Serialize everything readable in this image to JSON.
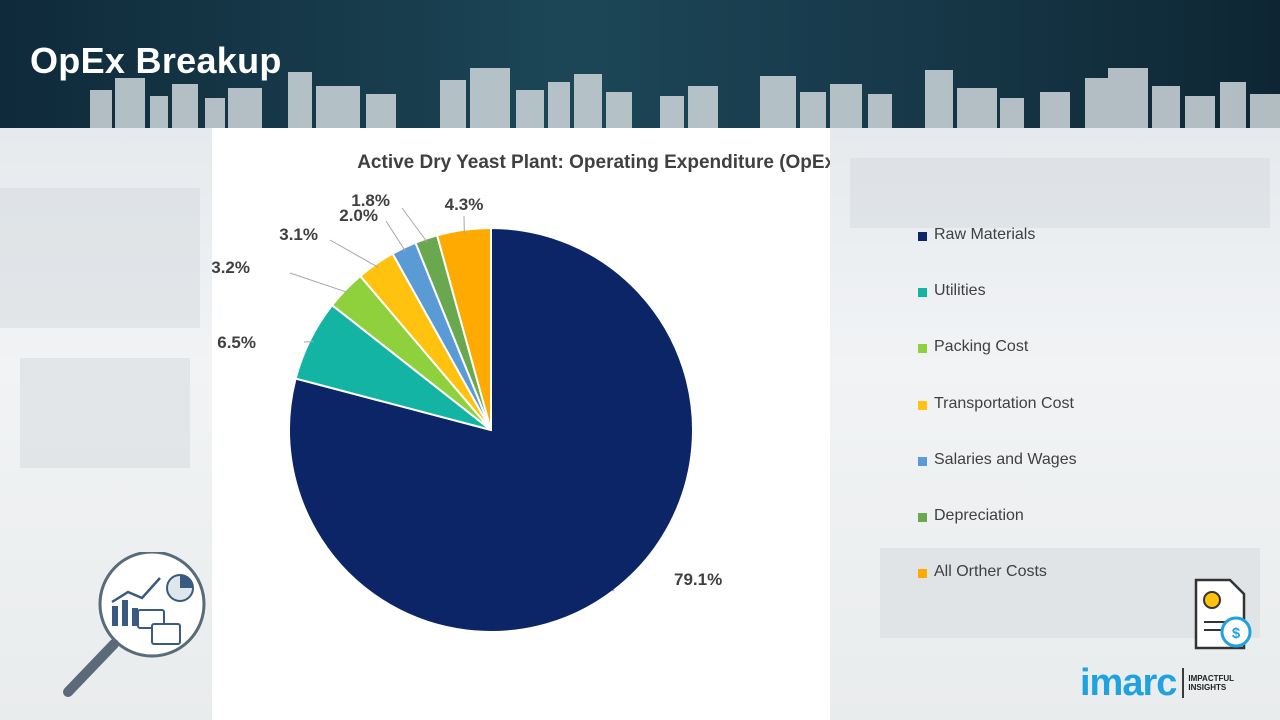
{
  "page": {
    "title": "OpEx Breakup"
  },
  "chart_data": {
    "type": "pie",
    "title": "Active Dry Yeast Plant: Operating Expenditure (OpEx) Breakup",
    "start_angle_deg": 0,
    "direction": "clockwise",
    "slices": [
      {
        "label": "Raw Materials",
        "value": 79.1,
        "display": "79.1%",
        "color": "#0c2566"
      },
      {
        "label": "Utilities",
        "value": 6.5,
        "display": "6.5%",
        "color": "#14b4a4"
      },
      {
        "label": "Packing Cost",
        "value": 3.2,
        "display": "3.2%",
        "color": "#8fd13c"
      },
      {
        "label": "Transportation Cost",
        "value": 3.1,
        "display": "3.1%",
        "color": "#ffc20e"
      },
      {
        "label": "Salaries and Wages",
        "value": 2.0,
        "display": "2.0%",
        "color": "#5b9bd5"
      },
      {
        "label": "Depreciation",
        "value": 1.8,
        "display": "1.8%",
        "color": "#6aa84f"
      },
      {
        "label": "All Orther Costs",
        "value": 4.3,
        "display": "4.3%",
        "color": "#ffaa00"
      }
    ],
    "legend": [
      "Raw Materials",
      "Utilities",
      "Packing Cost",
      "Transportation Cost",
      "Salaries and Wages",
      "Depreciation",
      "All Orther Costs"
    ],
    "legend_position": "right"
  },
  "branding": {
    "logo_word": "imarc",
    "logo_tag_line1": "IMPACTFUL",
    "logo_tag_line2": "INSIGHTS"
  },
  "icons": {
    "analytics": "magnifier-analytics-icon",
    "document": "cost-document-icon"
  }
}
